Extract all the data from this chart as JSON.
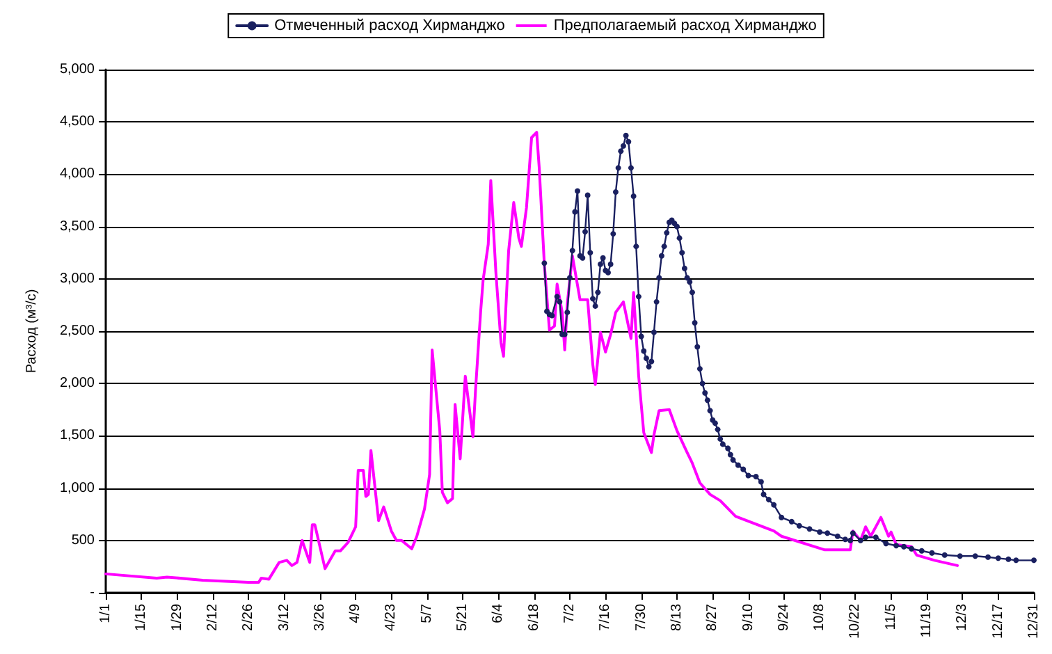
{
  "chart_data": {
    "type": "line",
    "ylabel": "Расход (м³/с)",
    "legend": "top",
    "grid": "y",
    "xlim": [
      "--01-01",
      "--12-31"
    ],
    "ylim": [
      0,
      5000
    ],
    "xticks": [
      {
        "value": "--01-01",
        "label": "1/1"
      },
      {
        "value": "--01-15",
        "label": "1/15"
      },
      {
        "value": "--01-29",
        "label": "1/29"
      },
      {
        "value": "--02-12",
        "label": "2/12"
      },
      {
        "value": "--02-26",
        "label": "2/26"
      },
      {
        "value": "--03-12",
        "label": "3/12"
      },
      {
        "value": "--03-26",
        "label": "3/26"
      },
      {
        "value": "--04-09",
        "label": "4/9"
      },
      {
        "value": "--04-23",
        "label": "4/23"
      },
      {
        "value": "--05-07",
        "label": "5/7"
      },
      {
        "value": "--05-21",
        "label": "5/21"
      },
      {
        "value": "--06-04",
        "label": "6/4"
      },
      {
        "value": "--06-18",
        "label": "6/18"
      },
      {
        "value": "--07-02",
        "label": "7/2"
      },
      {
        "value": "--07-16",
        "label": "7/16"
      },
      {
        "value": "--07-30",
        "label": "7/30"
      },
      {
        "value": "--08-13",
        "label": "8/13"
      },
      {
        "value": "--08-27",
        "label": "8/27"
      },
      {
        "value": "--09-10",
        "label": "9/10"
      },
      {
        "value": "--09-24",
        "label": "9/24"
      },
      {
        "value": "--10-08",
        "label": "10/8"
      },
      {
        "value": "--10-22",
        "label": "10/22"
      },
      {
        "value": "--11-05",
        "label": "11/5"
      },
      {
        "value": "--11-19",
        "label": "11/19"
      },
      {
        "value": "--12-03",
        "label": "12/3"
      },
      {
        "value": "--12-17",
        "label": "12/17"
      },
      {
        "value": "--12-31",
        "label": "12/31"
      }
    ],
    "yticks": [
      {
        "value": 0,
        "label": "-"
      },
      {
        "value": 500,
        "label": "500"
      },
      {
        "value": 1000,
        "label": "1,000"
      },
      {
        "value": 1500,
        "label": "1,500"
      },
      {
        "value": 2000,
        "label": "2,000"
      },
      {
        "value": 2500,
        "label": "2,500"
      },
      {
        "value": 3000,
        "label": "3,000"
      },
      {
        "value": 3500,
        "label": "3,500"
      },
      {
        "value": 4000,
        "label": "4,000"
      },
      {
        "value": 4500,
        "label": "4,500"
      },
      {
        "value": 5000,
        "label": "5,000"
      }
    ],
    "series": [
      {
        "name": "Отмеченный расход Хирманджо",
        "color": "#1a2060",
        "marker": "circle",
        "x": [
          "--06-22",
          "--06-23",
          "--06-24",
          "--06-25",
          "--06-27",
          "--06-28",
          "--06-29",
          "--06-30",
          "--07-01",
          "--07-02",
          "--07-03",
          "--07-04",
          "--07-05",
          "--07-06",
          "--07-07",
          "--07-08",
          "--07-09",
          "--07-10",
          "--07-11",
          "--07-12",
          "--07-13",
          "--07-14",
          "--07-15",
          "--07-16",
          "--07-17",
          "--07-18",
          "--07-19",
          "--07-20",
          "--07-21",
          "--07-22",
          "--07-23",
          "--07-24",
          "--07-25",
          "--07-26",
          "--07-27",
          "--07-28",
          "--07-29",
          "--07-30",
          "--07-31",
          "--08-01",
          "--08-02",
          "--08-03",
          "--08-04",
          "--08-05",
          "--08-06",
          "--08-07",
          "--08-08",
          "--08-09",
          "--08-10",
          "--08-11",
          "--08-12",
          "--08-13",
          "--08-14",
          "--08-15",
          "--08-16",
          "--08-17",
          "--08-18",
          "--08-19",
          "--08-20",
          "--08-21",
          "--08-22",
          "--08-23",
          "--08-24",
          "--08-25",
          "--08-26",
          "--08-27",
          "--08-28",
          "--08-29",
          "--08-30",
          "--08-31",
          "--09-02",
          "--09-03",
          "--09-04",
          "--09-06",
          "--09-08",
          "--09-10",
          "--09-13",
          "--09-15",
          "--09-16",
          "--09-18",
          "--09-20",
          "--09-23",
          "--09-27",
          "--09-30",
          "--10-04",
          "--10-08",
          "--10-11",
          "--10-15",
          "--10-18",
          "--10-20",
          "--10-21",
          "--10-24",
          "--10-26",
          "--10-30",
          "--11-03",
          "--11-07",
          "--11-10",
          "--11-13",
          "--11-17",
          "--11-21",
          "--11-26",
          "--12-02",
          "--12-08",
          "--12-13",
          "--12-17",
          "--12-21",
          "--12-24",
          "--12-31"
        ],
        "values": [
          3150,
          2690,
          2660,
          2650,
          2830,
          2780,
          2470,
          2470,
          2680,
          3010,
          3270,
          3640,
          3840,
          3220,
          3200,
          3450,
          3800,
          3250,
          2810,
          2740,
          2870,
          3140,
          3200,
          3080,
          3060,
          3140,
          3430,
          3830,
          4060,
          4220,
          4270,
          4370,
          4310,
          4060,
          3790,
          3310,
          2830,
          2450,
          2310,
          2240,
          2160,
          2210,
          2490,
          2780,
          3010,
          3220,
          3310,
          3440,
          3540,
          3560,
          3530,
          3500,
          3390,
          3250,
          3100,
          3010,
          2970,
          2870,
          2580,
          2350,
          2140,
          2000,
          1910,
          1840,
          1740,
          1650,
          1620,
          1560,
          1470,
          1420,
          1380,
          1320,
          1270,
          1220,
          1180,
          1120,
          1110,
          1060,
          940,
          890,
          840,
          720,
          680,
          640,
          610,
          580,
          570,
          540,
          510,
          500,
          570,
          500,
          530,
          530,
          470,
          450,
          440,
          420,
          400,
          380,
          360,
          350,
          350,
          340,
          330,
          320,
          310,
          310
        ]
      },
      {
        "name": "Предполагаемый расход Хирманджо",
        "color": "#ff00ff",
        "marker": "none",
        "x": [
          "--01-01",
          "--01-21",
          "--01-25",
          "--02-08",
          "--02-26",
          "--03-02",
          "--03-03",
          "--03-06",
          "--03-10",
          "--03-13",
          "--03-15",
          "--03-17",
          "--03-19",
          "--03-22",
          "--03-23",
          "--03-24",
          "--03-28",
          "--04-01",
          "--04-03",
          "--04-06",
          "--04-09",
          "--04-10",
          "--04-12",
          "--04-13",
          "--04-14",
          "--04-15",
          "--04-18",
          "--04-20",
          "--04-23",
          "--04-25",
          "--04-27",
          "--05-01",
          "--05-03",
          "--05-06",
          "--05-08",
          "--05-09",
          "--05-12",
          "--05-13",
          "--05-15",
          "--05-17",
          "--05-18",
          "--05-20",
          "--05-22",
          "--05-25",
          "--05-26",
          "--05-28",
          "--05-29",
          "--05-31",
          "--06-01",
          "--06-03",
          "--06-05",
          "--06-06",
          "--06-08",
          "--06-10",
          "--06-12",
          "--06-13",
          "--06-15",
          "--06-17",
          "--06-19",
          "--06-20",
          "--06-22",
          "--06-24",
          "--06-26",
          "--06-27",
          "--06-29",
          "--06-30",
          "--07-01",
          "--07-03",
          "--07-06",
          "--07-09",
          "--07-11",
          "--07-12",
          "--07-14",
          "--07-16",
          "--07-18",
          "--07-20",
          "--07-23",
          "--07-26",
          "--07-27",
          "--07-29",
          "--07-31",
          "--08-03",
          "--08-04",
          "--08-06",
          "--08-10",
          "--08-13",
          "--08-17",
          "--08-19",
          "--08-22",
          "--08-26",
          "--08-30",
          "--09-05",
          "--09-20",
          "--09-23",
          "--10-10",
          "--10-20",
          "--10-21",
          "--10-24",
          "--10-26",
          "--10-28",
          "--11-01",
          "--11-04",
          "--11-05",
          "--11-07",
          "--11-13",
          "--11-15",
          "--11-22",
          "--12-01"
        ],
        "values": [
          180,
          140,
          150,
          120,
          100,
          100,
          140,
          130,
          290,
          310,
          260,
          290,
          500,
          290,
          650,
          650,
          230,
          400,
          400,
          480,
          630,
          1170,
          1170,
          920,
          940,
          1360,
          690,
          820,
          590,
          500,
          500,
          420,
          540,
          800,
          1130,
          2320,
          1550,
          960,
          860,
          900,
          1800,
          1280,
          2070,
          1490,
          1930,
          2680,
          2990,
          3330,
          3940,
          3060,
          2390,
          2260,
          3270,
          3730,
          3390,
          3310,
          3680,
          4350,
          4400,
          4060,
          3140,
          2510,
          2550,
          2950,
          2680,
          2320,
          2760,
          3220,
          2800,
          2800,
          2180,
          1990,
          2490,
          2300,
          2470,
          2680,
          2780,
          2430,
          2870,
          2070,
          1530,
          1340,
          1510,
          1740,
          1750,
          1550,
          1340,
          1240,
          1050,
          940,
          880,
          730,
          590,
          540,
          410,
          410,
          590,
          500,
          630,
          540,
          720,
          540,
          580,
          460,
          440,
          360,
          310,
          260
        ]
      }
    ]
  }
}
